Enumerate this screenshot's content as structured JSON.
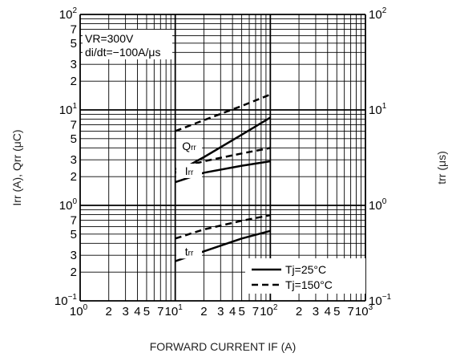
{
  "chart_data": {
    "type": "line",
    "x_scale": "log",
    "y_scale": "log",
    "xlim": [
      1,
      1000
    ],
    "ylim": [
      0.1,
      100
    ],
    "x_decade_labels": [
      {
        "base": "10",
        "exp": "0"
      },
      {
        "base": "10",
        "exp": "1"
      },
      {
        "base": "10",
        "exp": "2"
      },
      {
        "base": "10",
        "exp": "3"
      }
    ],
    "x_minor_labels": [
      "2",
      "3",
      "4",
      "5",
      "7"
    ],
    "y_left_decade_labels": [
      {
        "base": "10",
        "exp": "−1",
        "value": 0.1
      },
      {
        "base": "10",
        "exp": "0",
        "value": 1
      },
      {
        "base": "10",
        "exp": "1",
        "value": 10
      },
      {
        "base": "10",
        "exp": "2",
        "value": 100
      }
    ],
    "y_right_decade_labels": [
      {
        "base": "10",
        "exp": "−1",
        "value": 0.1
      },
      {
        "base": "10",
        "exp": "0",
        "value": 1
      },
      {
        "base": "10",
        "exp": "1",
        "value": 10
      },
      {
        "base": "10",
        "exp": "2",
        "value": 100
      }
    ],
    "y_minor_labels": [
      "2",
      "3",
      "5",
      "7"
    ],
    "xlabel": "FORWARD CURRENT   IF (A)",
    "ylabel_left": "Irr (A),  Qrr (μC)",
    "ylabel_right": "trr (μs)",
    "conditions": [
      "VR=300V",
      "di/dt=−100A/μs"
    ],
    "curve_labels": [
      {
        "text": "Irr",
        "x": 14,
        "y": 2.3
      },
      {
        "text": "Qrr",
        "x": 14,
        "y": 4.2
      },
      {
        "text": "trr",
        "x": 14,
        "y": 0.33
      }
    ],
    "legend": [
      {
        "label": "Tj=25°C",
        "style": "solid"
      },
      {
        "label": "Tj=150°C",
        "style": "dashed"
      }
    ],
    "series": [
      {
        "name": "Irr",
        "condition": "Tj=25°C",
        "style": "solid",
        "x": [
          10,
          20,
          50,
          100
        ],
        "y": [
          1.75,
          2.2,
          2.6,
          2.9
        ]
      },
      {
        "name": "Irr",
        "condition": "Tj=150°C",
        "style": "dashed",
        "x": [
          10,
          20,
          50,
          100
        ],
        "y": [
          2.4,
          2.9,
          3.5,
          4.0
        ]
      },
      {
        "name": "Qrr",
        "condition": "Tj=25°C",
        "style": "solid",
        "x": [
          10,
          20,
          50,
          100
        ],
        "y": [
          2.2,
          3.2,
          5.5,
          8.3
        ]
      },
      {
        "name": "Qrr",
        "condition": "Tj=150°C",
        "style": "dashed",
        "x": [
          10,
          20,
          50,
          100
        ],
        "y": [
          6.0,
          7.8,
          11.0,
          14.5
        ]
      },
      {
        "name": "trr",
        "condition": "Tj=25°C",
        "style": "solid",
        "x": [
          10,
          20,
          50,
          100
        ],
        "y": [
          0.26,
          0.33,
          0.45,
          0.54
        ]
      },
      {
        "name": "trr",
        "condition": "Tj=150°C",
        "style": "dashed",
        "x": [
          10,
          20,
          50,
          100
        ],
        "y": [
          0.45,
          0.56,
          0.69,
          0.79
        ]
      }
    ]
  }
}
